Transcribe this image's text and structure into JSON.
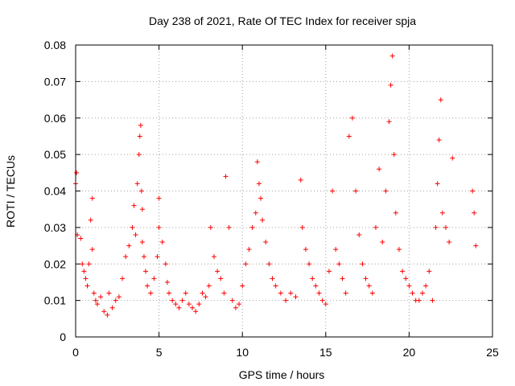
{
  "chart_data": {
    "type": "scatter",
    "title": "Day 238 of 2021, Rate Of TEC Index for receiver spja",
    "xlabel": "GPS time / hours",
    "ylabel": "ROTI / TECUs",
    "xlim": [
      0,
      25
    ],
    "ylim": [
      0,
      0.08
    ],
    "xticks": [
      "0",
      "5",
      "10",
      "15",
      "20",
      "25"
    ],
    "yticks": [
      "0",
      "0.01",
      "0.02",
      "0.03",
      "0.04",
      "0.05",
      "0.06",
      "0.07",
      "0.08"
    ],
    "grid": true,
    "marker": "plus",
    "color": "#ff0000",
    "series": [
      {
        "x": [
          0.0,
          0.05,
          0.1,
          0.3,
          0.4,
          0.5,
          0.6,
          0.7,
          0.8,
          0.9,
          1.0,
          1.0,
          1.1,
          1.2,
          1.3,
          1.5,
          1.7,
          1.9,
          2.0,
          2.2,
          2.4,
          2.6,
          2.8,
          3.0,
          3.2,
          3.4,
          3.5,
          3.6,
          3.7,
          3.8,
          3.85,
          3.9,
          3.95,
          4.0,
          4.0,
          4.1,
          4.2,
          4.3,
          4.5,
          4.7,
          4.9,
          5.0,
          5.0,
          5.2,
          5.4,
          5.5,
          5.6,
          5.8,
          6.0,
          6.2,
          6.4,
          6.6,
          6.8,
          7.0,
          7.2,
          7.4,
          7.6,
          7.8,
          8.0,
          8.1,
          8.3,
          8.5,
          8.7,
          8.9,
          9.0,
          9.2,
          9.4,
          9.6,
          9.8,
          10.0,
          10.2,
          10.4,
          10.6,
          10.8,
          10.9,
          11.0,
          11.1,
          11.2,
          11.4,
          11.6,
          11.8,
          12.0,
          12.3,
          12.6,
          12.9,
          13.2,
          13.5,
          13.6,
          13.8,
          14.0,
          14.2,
          14.4,
          14.6,
          14.8,
          15.0,
          15.2,
          15.4,
          15.6,
          15.8,
          16.0,
          16.2,
          16.4,
          16.6,
          16.8,
          17.0,
          17.2,
          17.4,
          17.6,
          17.8,
          18.0,
          18.2,
          18.4,
          18.6,
          18.8,
          18.9,
          19.0,
          19.1,
          19.2,
          19.4,
          19.6,
          19.8,
          20.0,
          20.2,
          20.4,
          20.6,
          20.8,
          21.0,
          21.2,
          21.4,
          21.6,
          21.7,
          21.8,
          21.9,
          22.0,
          22.2,
          22.4,
          22.6,
          23.8,
          23.9,
          24.0
        ],
        "y": [
          0.042,
          0.045,
          0.028,
          0.027,
          0.02,
          0.018,
          0.016,
          0.014,
          0.02,
          0.032,
          0.038,
          0.024,
          0.012,
          0.01,
          0.009,
          0.011,
          0.007,
          0.006,
          0.012,
          0.008,
          0.01,
          0.011,
          0.016,
          0.022,
          0.025,
          0.03,
          0.036,
          0.028,
          0.042,
          0.05,
          0.055,
          0.058,
          0.04,
          0.035,
          0.026,
          0.022,
          0.018,
          0.014,
          0.012,
          0.016,
          0.022,
          0.03,
          0.038,
          0.026,
          0.02,
          0.015,
          0.012,
          0.01,
          0.009,
          0.008,
          0.01,
          0.012,
          0.009,
          0.008,
          0.007,
          0.009,
          0.012,
          0.011,
          0.014,
          0.03,
          0.022,
          0.018,
          0.016,
          0.012,
          0.044,
          0.03,
          0.01,
          0.008,
          0.009,
          0.014,
          0.02,
          0.024,
          0.03,
          0.034,
          0.048,
          0.042,
          0.038,
          0.032,
          0.026,
          0.02,
          0.016,
          0.014,
          0.012,
          0.01,
          0.012,
          0.011,
          0.043,
          0.03,
          0.024,
          0.02,
          0.016,
          0.014,
          0.012,
          0.01,
          0.009,
          0.018,
          0.04,
          0.024,
          0.02,
          0.016,
          0.012,
          0.055,
          0.06,
          0.04,
          0.028,
          0.02,
          0.016,
          0.014,
          0.012,
          0.03,
          0.046,
          0.026,
          0.04,
          0.059,
          0.069,
          0.077,
          0.05,
          0.034,
          0.024,
          0.018,
          0.016,
          0.014,
          0.012,
          0.01,
          0.01,
          0.012,
          0.014,
          0.018,
          0.01,
          0.03,
          0.042,
          0.054,
          0.065,
          0.034,
          0.03,
          0.026,
          0.049,
          0.04,
          0.034,
          0.025
        ]
      }
    ]
  }
}
